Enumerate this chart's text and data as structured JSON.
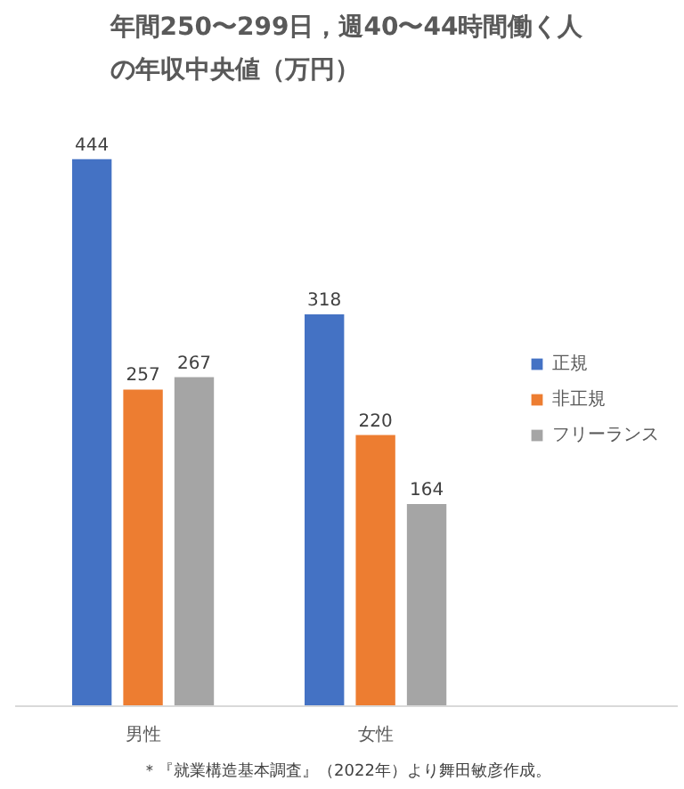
{
  "chart_data": {
    "type": "bar",
    "title": "年間250〜299日，週40〜44時間働く人の年収中央値（万円）",
    "categories": [
      "男性",
      "女性"
    ],
    "series": [
      {
        "name": "正規",
        "color": "#4472c4",
        "values": [
          444,
          318
        ]
      },
      {
        "name": "非正規",
        "color": "#ed7d31",
        "values": [
          257,
          220
        ]
      },
      {
        "name": "フリーランス",
        "color": "#a5a5a5",
        "values": [
          267,
          164
        ]
      }
    ],
    "data_labels": true,
    "legend": "right",
    "grid": false,
    "annotations": [
      "＊『就業構造基本調査』（2022年）より舞田敏彦作成。"
    ]
  }
}
